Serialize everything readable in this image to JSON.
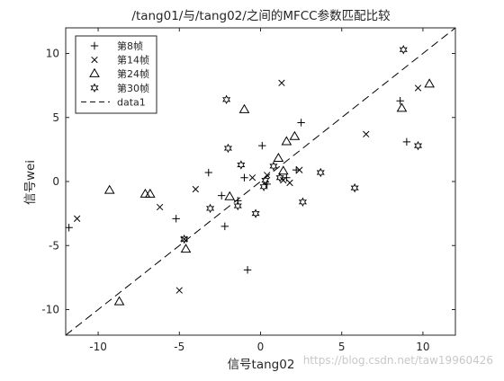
{
  "chart_data": {
    "type": "scatter",
    "title": "/tang01/与/tang02/之间的MFCC参数匹配比较",
    "xlabel": "信号tang02",
    "ylabel": "信号wei",
    "xlim": [
      -12,
      12
    ],
    "ylim": [
      -12,
      12
    ],
    "xticks": [
      -10,
      -5,
      0,
      5,
      10
    ],
    "yticks": [
      -10,
      -5,
      0,
      5,
      10
    ],
    "grid": false,
    "legend_position": "top-left",
    "series": [
      {
        "name": "第8帧",
        "marker": "plus",
        "points": [
          [
            -11.8,
            -3.6
          ],
          [
            -5.2,
            -2.9
          ],
          [
            -3.2,
            0.7
          ],
          [
            -2.4,
            -1.1
          ],
          [
            -2.2,
            -3.5
          ],
          [
            -1.4,
            -1.5
          ],
          [
            -1.0,
            0.3
          ],
          [
            -0.8,
            -6.9
          ],
          [
            0.1,
            2.8
          ],
          [
            0.4,
            -0.2
          ],
          [
            1.6,
            0.3
          ],
          [
            2.2,
            0.9
          ],
          [
            2.5,
            4.6
          ],
          [
            8.6,
            6.3
          ],
          [
            9.0,
            3.1
          ]
        ]
      },
      {
        "name": "第14帧",
        "marker": "cross",
        "points": [
          [
            -11.3,
            -2.9
          ],
          [
            -6.2,
            -2.0
          ],
          [
            -5.0,
            -8.5
          ],
          [
            -4.7,
            -4.5
          ],
          [
            -4.0,
            -0.6
          ],
          [
            -0.5,
            0.3
          ],
          [
            0.4,
            0.5
          ],
          [
            1.3,
            7.7
          ],
          [
            1.4,
            0.1
          ],
          [
            1.8,
            -0.1
          ],
          [
            2.4,
            0.9
          ],
          [
            6.5,
            3.7
          ],
          [
            9.7,
            7.3
          ]
        ]
      },
      {
        "name": "第24帧",
        "marker": "triangle",
        "points": [
          [
            -9.3,
            -0.7
          ],
          [
            -8.7,
            -9.4
          ],
          [
            -7.1,
            -1.0
          ],
          [
            -6.8,
            -1.0
          ],
          [
            -4.6,
            -5.3
          ],
          [
            -1.9,
            -1.2
          ],
          [
            -1.0,
            5.6
          ],
          [
            1.1,
            1.8
          ],
          [
            1.4,
            0.8
          ],
          [
            1.6,
            3.1
          ],
          [
            2.1,
            3.5
          ],
          [
            8.7,
            5.7
          ],
          [
            10.4,
            7.6
          ]
        ]
      },
      {
        "name": "第30帧",
        "marker": "hexagram",
        "points": [
          [
            -4.7,
            -4.5
          ],
          [
            -3.1,
            -2.1
          ],
          [
            -2.1,
            6.4
          ],
          [
            -2.0,
            2.6
          ],
          [
            -1.4,
            -1.9
          ],
          [
            -1.2,
            1.3
          ],
          [
            -0.3,
            -2.5
          ],
          [
            0.2,
            -0.4
          ],
          [
            0.3,
            0.1
          ],
          [
            0.8,
            1.2
          ],
          [
            1.2,
            0.3
          ],
          [
            2.6,
            -1.6
          ],
          [
            3.7,
            0.7
          ],
          [
            5.8,
            -0.5
          ],
          [
            8.8,
            10.3
          ],
          [
            9.7,
            2.8
          ]
        ]
      },
      {
        "name": "data1",
        "style": "dashed-line",
        "points": [
          [
            -12,
            -12
          ],
          [
            12,
            12
          ]
        ]
      }
    ]
  },
  "watermark": "https://blog.csdn.net/taw19960426"
}
